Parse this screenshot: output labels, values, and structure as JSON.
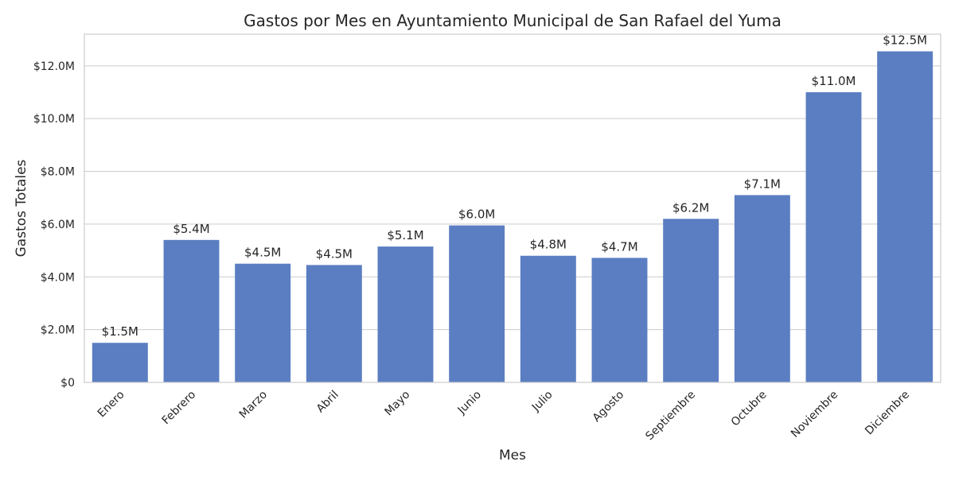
{
  "chart_data": {
    "type": "bar",
    "title": "Gastos por Mes en Ayuntamiento Municipal de San Rafael del Yuma",
    "xlabel": "Mes",
    "ylabel": "Gastos Totales",
    "categories": [
      "Enero",
      "Febrero",
      "Marzo",
      "Abril",
      "Mayo",
      "Junio",
      "Julio",
      "Agosto",
      "Septiembre",
      "Octubre",
      "Noviembre",
      "Diciembre"
    ],
    "values": [
      1.5,
      5.4,
      4.5,
      4.45,
      5.15,
      5.95,
      4.8,
      4.72,
      6.2,
      7.1,
      11.0,
      12.55
    ],
    "data_labels": [
      "$1.5M",
      "$5.4M",
      "$4.5M",
      "$4.5M",
      "$5.1M",
      "$6.0M",
      "$4.8M",
      "$4.7M",
      "$6.2M",
      "$7.1M",
      "$11.0M",
      "$12.5M"
    ],
    "value_unit": "millions USD",
    "ylim": [
      0,
      13.2
    ],
    "yticks": [
      0,
      2,
      4,
      6,
      8,
      10,
      12
    ],
    "ytick_labels": [
      "$0",
      "$2.0M",
      "$4.0M",
      "$6.0M",
      "$8.0M",
      "$10.0M",
      "$12.0M"
    ],
    "grid": true,
    "bar_color": "#5b7ec2",
    "grid_color": "#cccccc"
  }
}
